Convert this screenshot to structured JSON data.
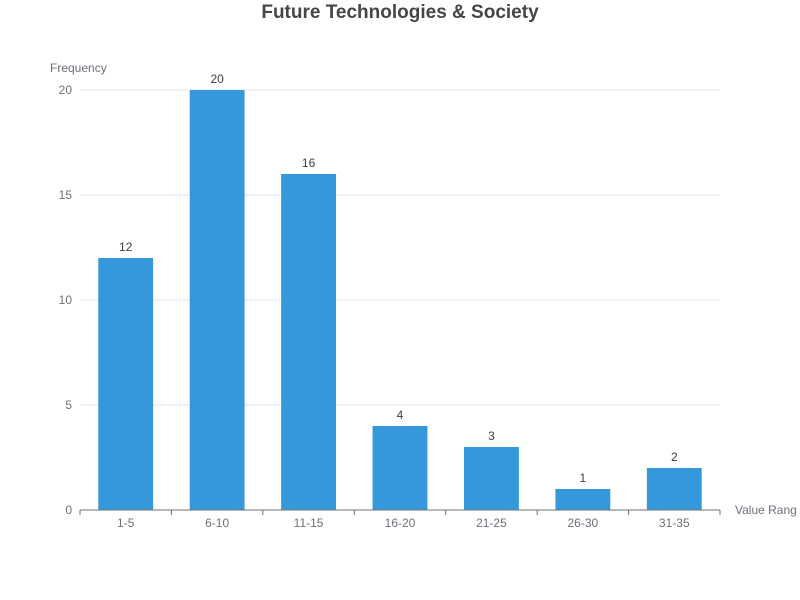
{
  "chart_data": {
    "type": "bar",
    "title": "Future Technologies & Society",
    "xlabel": "Value Rang",
    "ylabel": "Frequency",
    "categories": [
      "1-5",
      "6-10",
      "11-15",
      "16-20",
      "21-25",
      "26-30",
      "31-35"
    ],
    "values": [
      12,
      20,
      16,
      4,
      3,
      1,
      2
    ],
    "ylim": [
      0,
      20
    ],
    "yticks": [
      0,
      5,
      10,
      15,
      20
    ],
    "grid": true,
    "legend": "none",
    "bar_color": "#3498db",
    "data_labels": true
  }
}
